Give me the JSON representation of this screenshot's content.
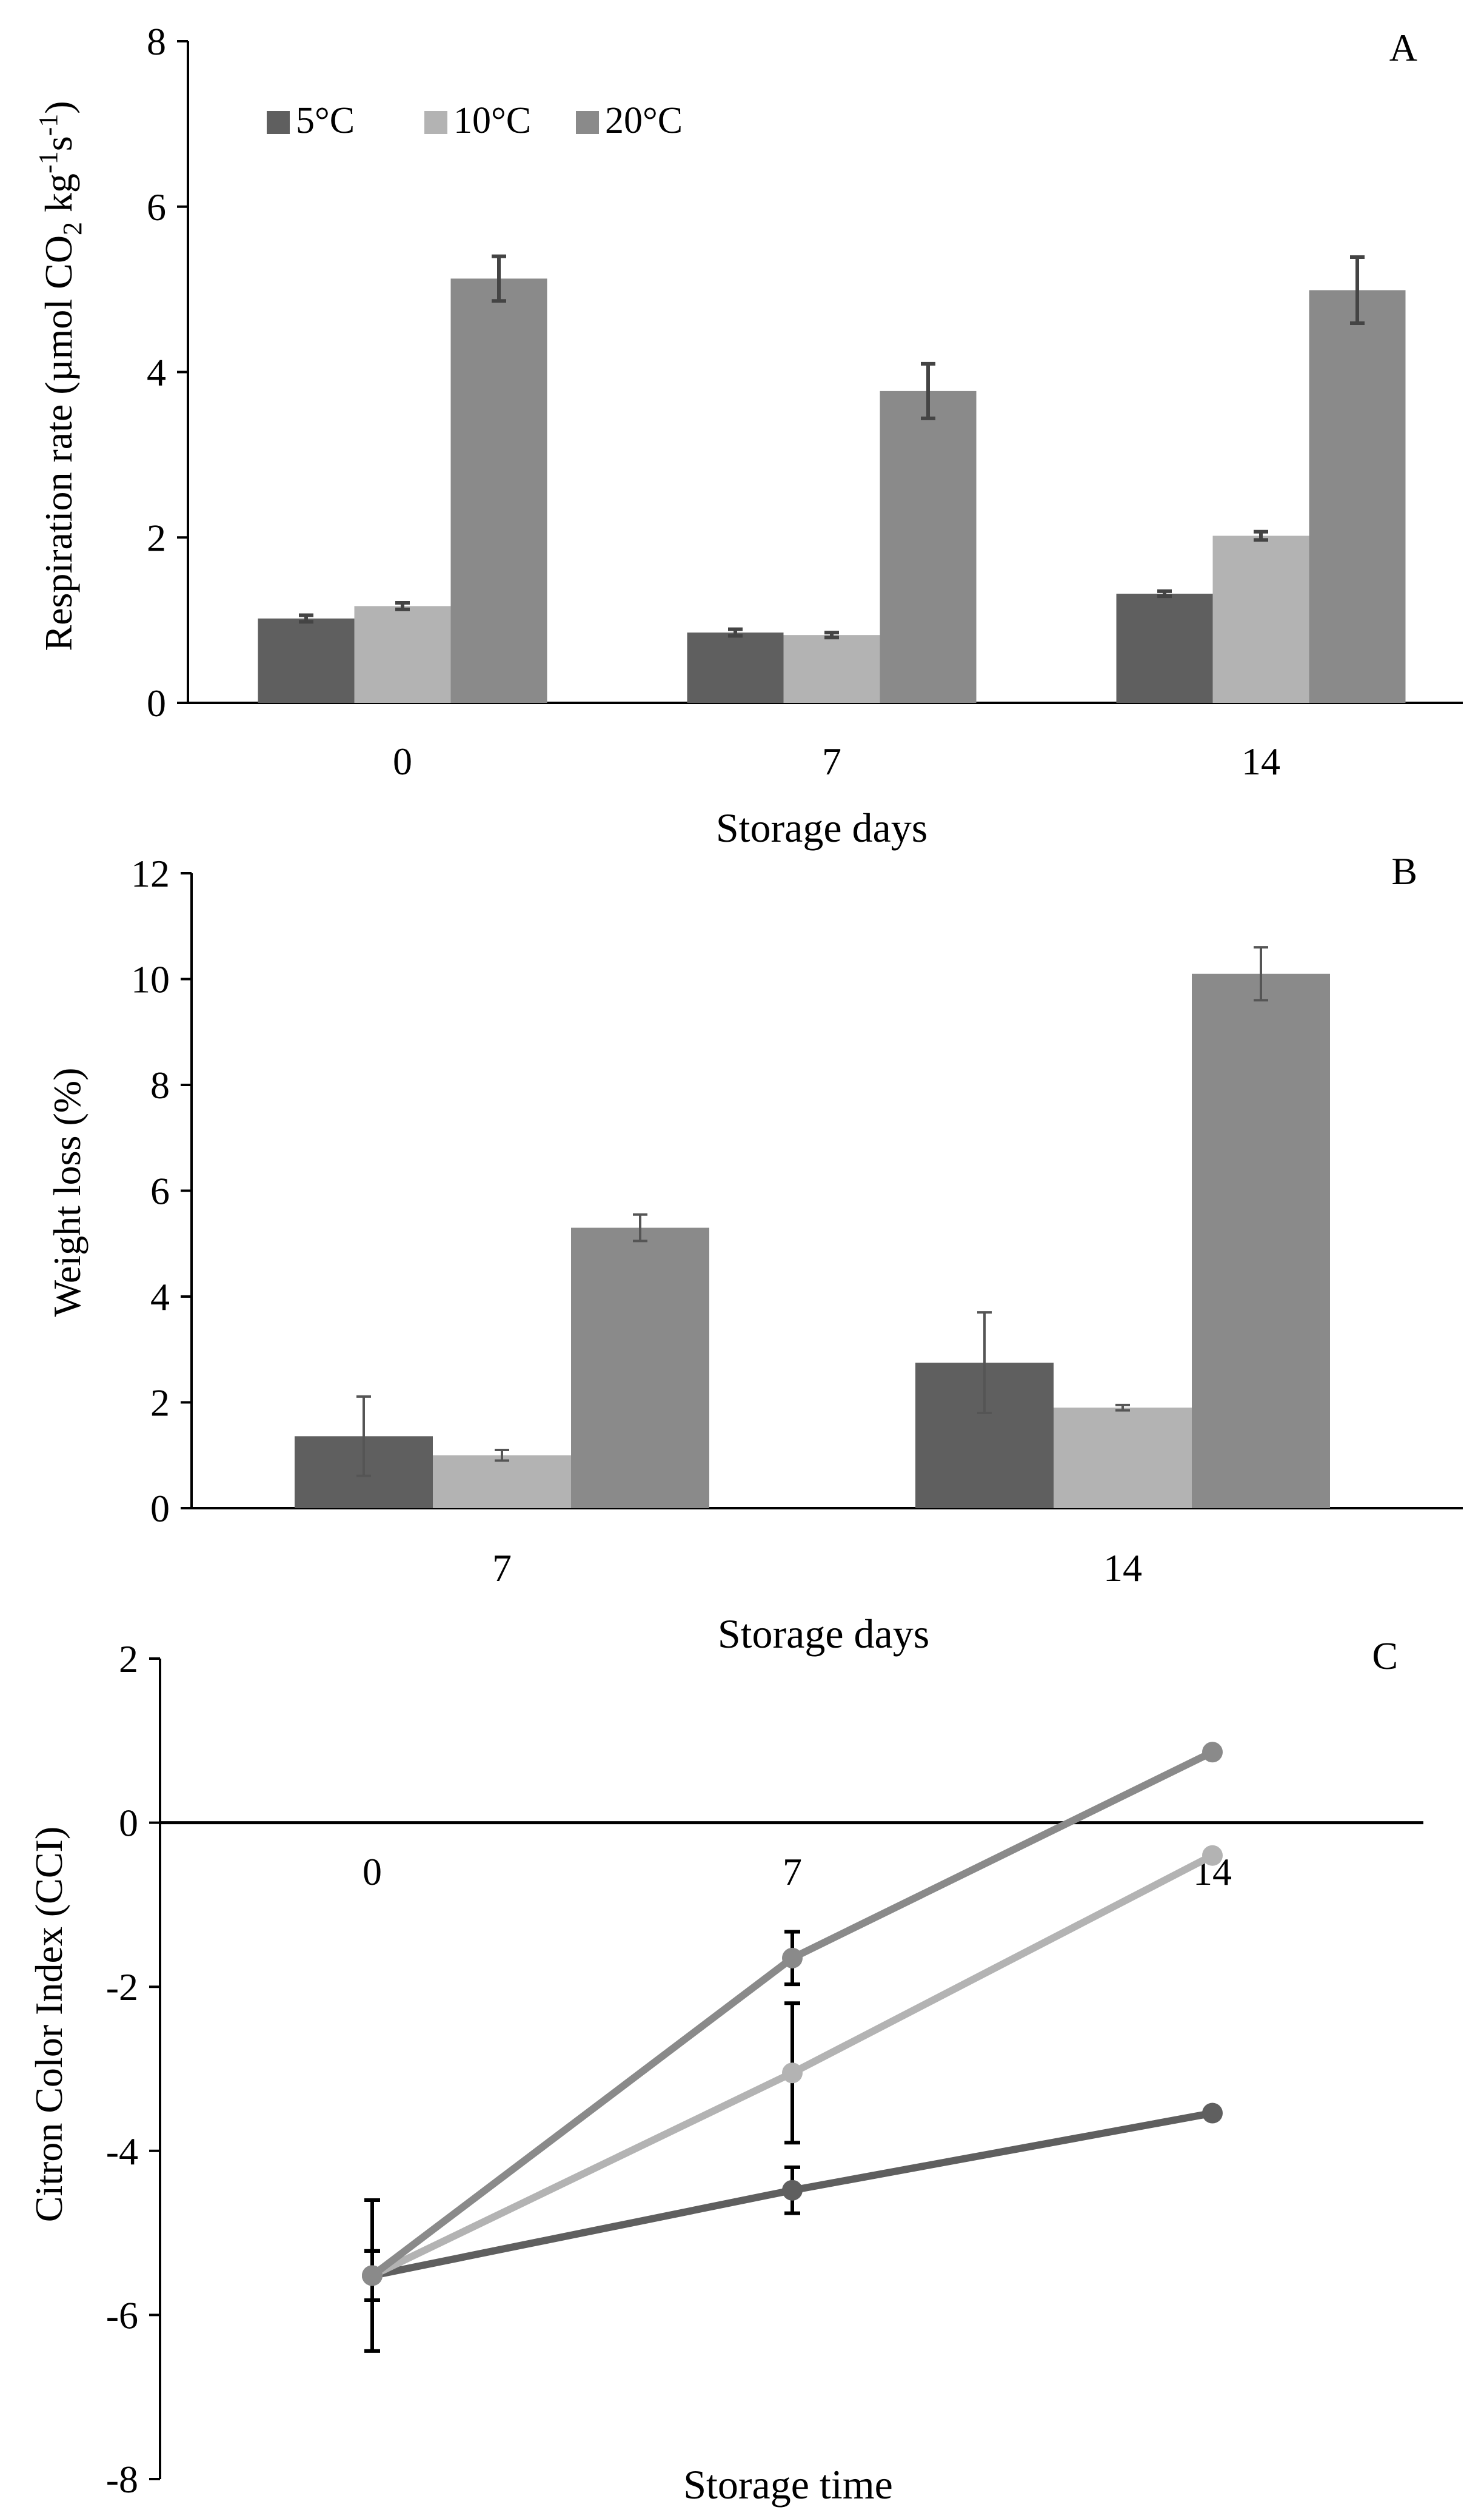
{
  "chart_data": [
    {
      "panel_label": "A",
      "type": "bar",
      "xlabel": "Storage days",
      "ylabel": "Respiration rate (µmol  CO2 kg-1s-1)",
      "ylabel_parts": {
        "main": "Respiration rate (µmol  CO",
        "sub": "2",
        "mid": " kg",
        "sup1": "-1",
        "s": "s",
        "sup2": "-1",
        "end": ")"
      },
      "categories": [
        "0",
        "7",
        "14"
      ],
      "ylim": [
        0,
        8
      ],
      "yticks": [
        "0",
        "2",
        "4",
        "6",
        "8"
      ],
      "legend_position": "top-left",
      "series": [
        {
          "name": "5°C",
          "color": "#5f5f5f",
          "values": [
            1.02,
            0.85,
            1.32
          ],
          "errors": [
            0.04,
            0.04,
            0.03
          ]
        },
        {
          "name": "10°C",
          "color": "#b3b3b3",
          "values": [
            1.17,
            0.82,
            2.02
          ],
          "errors": [
            0.04,
            0.03,
            0.05
          ]
        },
        {
          "name": "20°C",
          "color": "#8a8a8a",
          "values": [
            5.13,
            3.77,
            4.99
          ],
          "errors": [
            0.27,
            0.33,
            0.4
          ]
        }
      ]
    },
    {
      "panel_label": "B",
      "type": "bar",
      "xlabel": "Storage days",
      "ylabel": "Weight loss (%)",
      "categories": [
        "7",
        "14"
      ],
      "ylim": [
        0,
        12
      ],
      "yticks": [
        "0",
        "2",
        "4",
        "6",
        "8",
        "10",
        "12"
      ],
      "series": [
        {
          "name": "5°C",
          "color": "#5f5f5f",
          "values": [
            1.36,
            2.75
          ],
          "errors": [
            0.75,
            0.95
          ]
        },
        {
          "name": "10°C",
          "color": "#b3b3b3",
          "values": [
            1.0,
            1.9
          ],
          "errors": [
            0.1,
            0.05
          ]
        },
        {
          "name": "20°C",
          "color": "#8a8a8a",
          "values": [
            5.3,
            10.1
          ],
          "errors": [
            0.25,
            0.5
          ]
        }
      ]
    },
    {
      "panel_label": "C",
      "type": "line",
      "xlabel": "Storage time",
      "ylabel": "Citron Color Index (CCI)",
      "categories": [
        "0",
        "7",
        "14"
      ],
      "ylim": [
        -8,
        2
      ],
      "yticks": [
        "-8",
        "-6",
        "-4",
        "-2",
        "0",
        "2"
      ],
      "series": [
        {
          "name": "5°C",
          "color": "#5f5f5f",
          "values": [
            -5.52,
            -4.48,
            -3.54
          ],
          "errors": [
            0.3,
            0.28,
            0
          ]
        },
        {
          "name": "10°C",
          "color": "#b3b3b3",
          "values": [
            -5.52,
            -3.05,
            -0.4
          ],
          "errors": [
            0.92,
            0.85,
            0
          ]
        },
        {
          "name": "20°C",
          "color": "#8a8a8a",
          "values": [
            -5.52,
            -1.65,
            0.86
          ],
          "errors": [
            0.3,
            0.32,
            0
          ]
        }
      ]
    }
  ]
}
